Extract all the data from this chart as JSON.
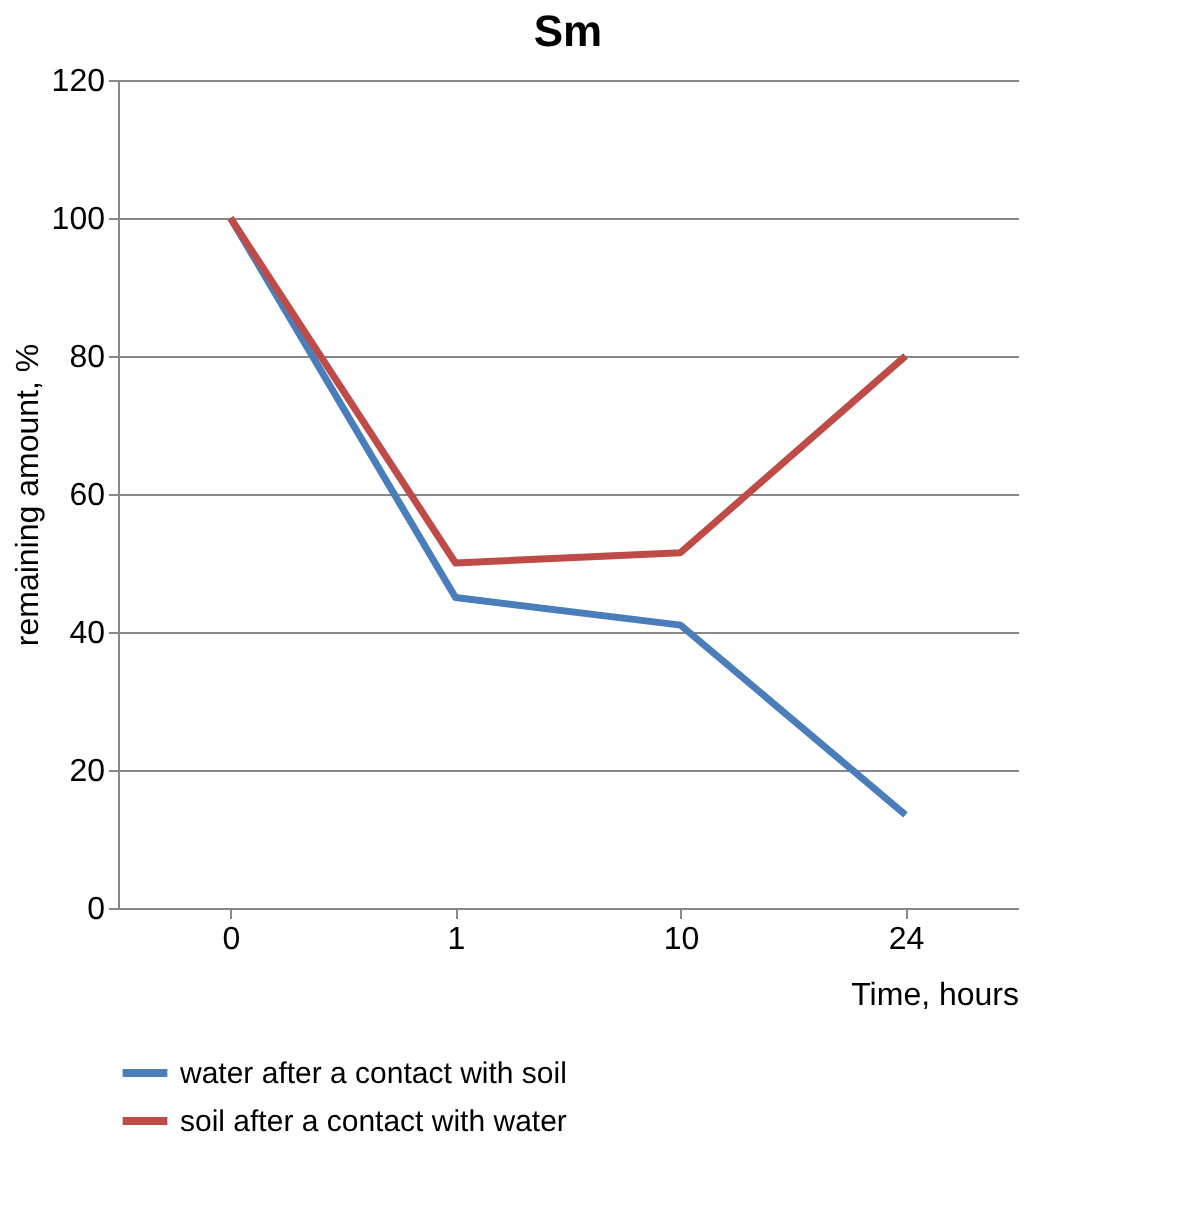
{
  "chart_data": {
    "type": "line",
    "title": "Sm",
    "xlabel": "Time, hours",
    "ylabel": "remaining amount, %",
    "categories": [
      "0",
      "1",
      "10",
      "24"
    ],
    "series": [
      {
        "name": "water after a contact with soil",
        "color": "#4a7ebb",
        "values": [
          100,
          45,
          41,
          13.5
        ]
      },
      {
        "name": "soil after a contact with water",
        "color": "#be4b48",
        "values": [
          100,
          50,
          51.5,
          80
        ]
      }
    ],
    "ylim": [
      0,
      120
    ],
    "yticks": [
      0,
      20,
      40,
      60,
      80,
      100,
      120
    ],
    "grid": "y",
    "legend": "bottom",
    "marker": "none",
    "line_style": "solid"
  }
}
